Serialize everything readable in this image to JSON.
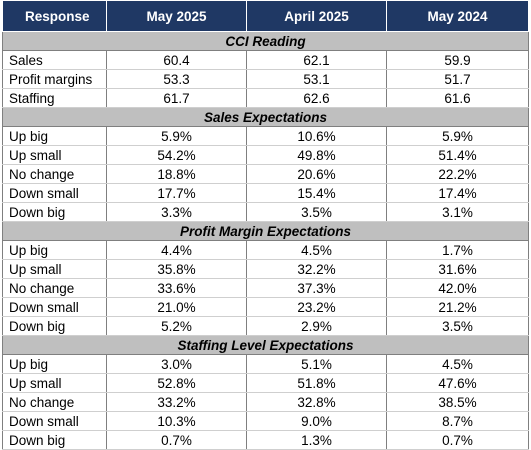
{
  "headers": [
    "Response",
    "May 2025",
    "April 2025",
    "May 2024"
  ],
  "sections": [
    {
      "title": "CCI Reading",
      "rows": [
        {
          "label": "Sales",
          "values": [
            "60.4",
            "62.1",
            "59.9"
          ]
        },
        {
          "label": "Profit margins",
          "values": [
            "53.3",
            "53.1",
            "51.7"
          ]
        },
        {
          "label": "Staffing",
          "values": [
            "61.7",
            "62.6",
            "61.6"
          ]
        }
      ]
    },
    {
      "title": "Sales Expectations",
      "rows": [
        {
          "label": "Up big",
          "values": [
            "5.9%",
            "10.6%",
            "5.9%"
          ]
        },
        {
          "label": "Up small",
          "values": [
            "54.2%",
            "49.8%",
            "51.4%"
          ]
        },
        {
          "label": "No change",
          "values": [
            "18.8%",
            "20.6%",
            "22.2%"
          ]
        },
        {
          "label": "Down small",
          "values": [
            "17.7%",
            "15.4%",
            "17.4%"
          ]
        },
        {
          "label": "Down big",
          "values": [
            "3.3%",
            "3.5%",
            "3.1%"
          ]
        }
      ]
    },
    {
      "title": "Profit Margin Expectations",
      "rows": [
        {
          "label": "Up big",
          "values": [
            "4.4%",
            "4.5%",
            "1.7%"
          ]
        },
        {
          "label": "Up small",
          "values": [
            "35.8%",
            "32.2%",
            "31.6%"
          ]
        },
        {
          "label": "No change",
          "values": [
            "33.6%",
            "37.3%",
            "42.0%"
          ]
        },
        {
          "label": "Down small",
          "values": [
            "21.0%",
            "23.2%",
            "21.2%"
          ]
        },
        {
          "label": "Down big",
          "values": [
            "5.2%",
            "2.9%",
            "3.5%"
          ]
        }
      ]
    },
    {
      "title": "Staffing Level Expectations",
      "rows": [
        {
          "label": "Up big",
          "values": [
            "3.0%",
            "5.1%",
            "4.5%"
          ]
        },
        {
          "label": "Up small",
          "values": [
            "52.8%",
            "51.8%",
            "47.6%"
          ]
        },
        {
          "label": "No change",
          "values": [
            "33.2%",
            "32.8%",
            "38.5%"
          ]
        },
        {
          "label": "Down small",
          "values": [
            "10.3%",
            "9.0%",
            "8.7%"
          ]
        },
        {
          "label": "Down big",
          "values": [
            "0.7%",
            "1.3%",
            "0.7%"
          ]
        }
      ]
    }
  ]
}
